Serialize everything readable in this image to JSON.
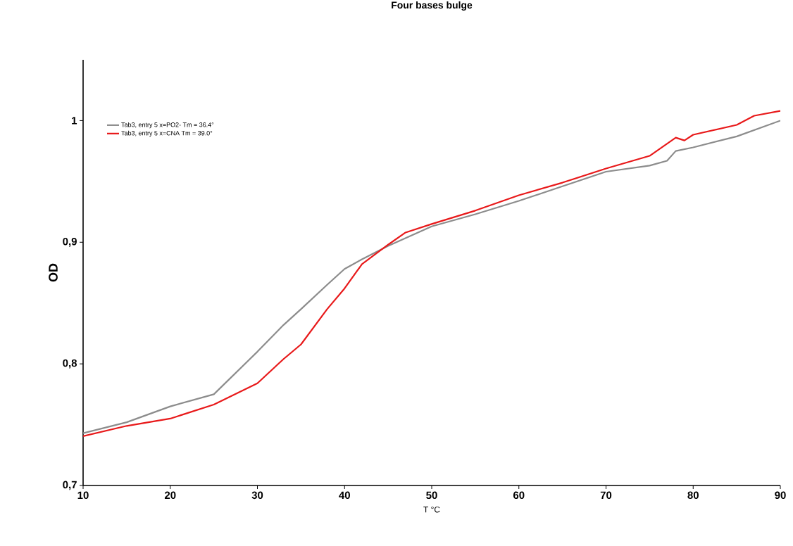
{
  "chart_data": {
    "type": "line",
    "title": "Four bases bulge",
    "xlabel": "T °C",
    "ylabel": "OD",
    "xlim": [
      10,
      90
    ],
    "xticks": [
      10,
      20,
      30,
      40,
      50,
      60,
      70,
      80,
      90
    ],
    "ylim": [
      0.7,
      1.05
    ],
    "yticks": [
      {
        "value": 0.7,
        "label": "0,7"
      },
      {
        "value": 0.8,
        "label": "0,8"
      },
      {
        "value": 0.9,
        "label": "0,9"
      },
      {
        "value": 1,
        "label": "1"
      }
    ],
    "grid": false,
    "legend": "top left",
    "marker": "none",
    "line_style": "solid",
    "series": [
      {
        "name": "Tab3, entry 5 x=PO2- Tm = 36.4°",
        "color": "#8c8c8c",
        "x": [
          10,
          15,
          20,
          25,
          30,
          33,
          35,
          38,
          40,
          42,
          45,
          50,
          55,
          60,
          65,
          70,
          75,
          77,
          78,
          80,
          85,
          90
        ],
        "values": [
          0.743,
          0.752,
          0.765,
          0.775,
          0.81,
          0.832,
          0.845,
          0.865,
          0.878,
          0.886,
          0.897,
          0.913,
          0.923,
          0.934,
          0.946,
          0.958,
          0.963,
          0.967,
          0.975,
          0.978,
          0.987,
          1.0
        ]
      },
      {
        "name": "Tab3, entry 5 x=CNA Tm = 39.0°",
        "color": "#e8191a",
        "x": [
          10,
          15,
          20,
          25,
          30,
          33,
          35,
          38,
          40,
          42,
          45,
          47,
          50,
          55,
          60,
          65,
          70,
          75,
          78,
          79,
          80,
          85,
          87,
          90
        ],
        "values": [
          0.7405,
          0.749,
          0.755,
          0.7665,
          0.784,
          0.804,
          0.816,
          0.845,
          0.862,
          0.882,
          0.898,
          0.908,
          0.915,
          0.926,
          0.9386,
          0.949,
          0.9606,
          0.971,
          0.986,
          0.9837,
          0.9884,
          0.9965,
          1.004,
          1.008
        ]
      }
    ]
  }
}
